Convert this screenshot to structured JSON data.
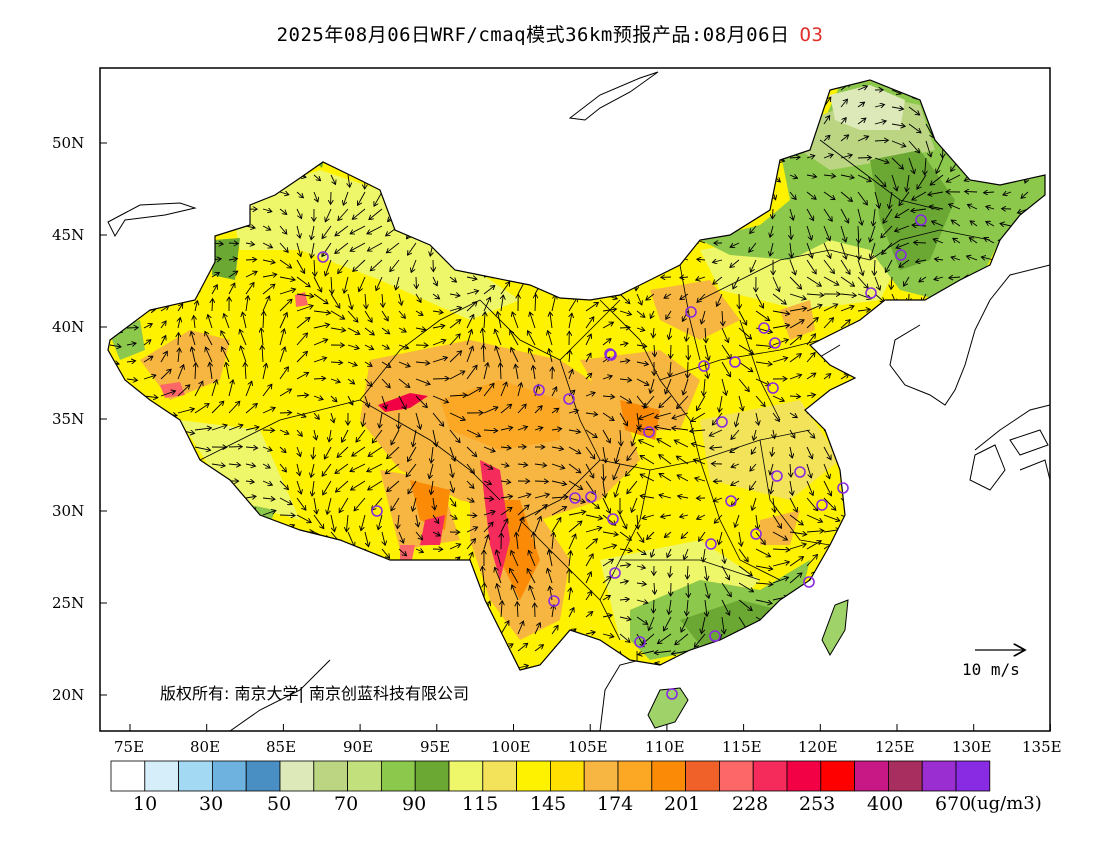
{
  "title": {
    "main": "2025年08月06日WRF/cmaq模式36km预报产品:08月06日",
    "pollutant": "O3"
  },
  "axes": {
    "lon_ticks": [
      "75E",
      "80E",
      "85E",
      "90E",
      "95E",
      "100E",
      "105E",
      "110E",
      "115E",
      "120E",
      "125E",
      "130E",
      "135E"
    ],
    "lat_ticks": [
      "50N",
      "45N",
      "40N",
      "35N",
      "30N",
      "25N",
      "20N"
    ]
  },
  "copyright": "版权所有: 南京大学| 南京创蓝科技有限公司",
  "wind_reference": "10 m/s",
  "colorbar": {
    "colors": [
      "#ffffff",
      "#d6eefa",
      "#a4d9f3",
      "#6eb2df",
      "#4a8fc4",
      "#dde9b9",
      "#bcd582",
      "#c2e07b",
      "#8cc84b",
      "#6aa833",
      "#eef76a",
      "#f2e35a",
      "#fff200",
      "#ffe000",
      "#f7b541",
      "#fca825",
      "#fb8b07",
      "#f06129",
      "#fe6767",
      "#f52c5b",
      "#f20245",
      "#ff0000",
      "#c71885",
      "#a82e60",
      "#9b2ed0",
      "#892be3"
    ],
    "labels": [
      "10",
      "30",
      "50",
      "70",
      "90",
      "115",
      "145",
      "174",
      "201",
      "228",
      "253",
      "400",
      "670"
    ],
    "unit": "(ug/m3)"
  },
  "cities": 33
}
